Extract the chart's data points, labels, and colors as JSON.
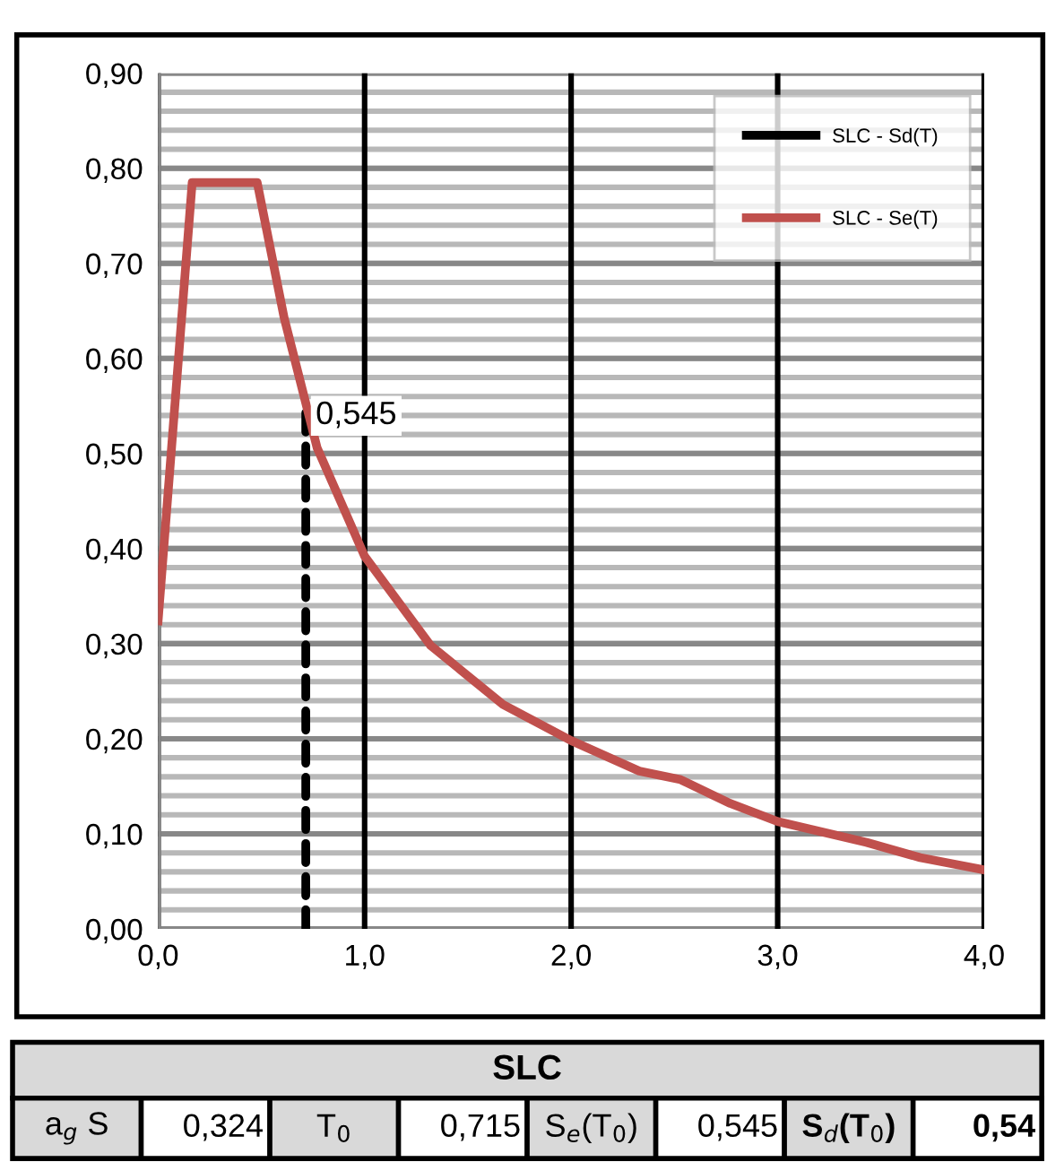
{
  "chart_data": {
    "type": "line",
    "series": [
      {
        "name": "SLC - Sd(T)",
        "color": "#000000",
        "line_style": "dashed",
        "x": [
          0.715,
          0.715
        ],
        "values": [
          0,
          0.545
        ]
      },
      {
        "name": "SLC - Se(T)",
        "color": "#c0504d",
        "line_style": "solid",
        "x": [
          0,
          0.165,
          0.48,
          0.61,
          0.77,
          0.885,
          1.0,
          1.32,
          1.67,
          2.0,
          2.33,
          2.53,
          2.77,
          3.0,
          3.43,
          3.69,
          3.86,
          4.0
        ],
        "values": [
          0.324,
          0.785,
          0.785,
          0.643,
          0.506,
          0.449,
          0.392,
          0.298,
          0.236,
          0.198,
          0.166,
          0.157,
          0.132,
          0.113,
          0.091,
          0.075,
          0.068,
          0.062
        ]
      }
    ],
    "xlim": [
      0,
      4
    ],
    "xticks": [
      {
        "value": 0,
        "label": "0,0"
      },
      {
        "value": 1,
        "label": "1,0"
      },
      {
        "value": 2,
        "label": "2,0"
      },
      {
        "value": 3,
        "label": "3,0"
      },
      {
        "value": 4,
        "label": "4,0"
      }
    ],
    "ylim": [
      0,
      0.9
    ],
    "yticks": [
      {
        "value": 0,
        "label": "0,00"
      },
      {
        "value": 0.1,
        "label": "0,10"
      },
      {
        "value": 0.2,
        "label": "0,20"
      },
      {
        "value": 0.3,
        "label": "0,30"
      },
      {
        "value": 0.4,
        "label": "0,40"
      },
      {
        "value": 0.5,
        "label": "0,50"
      },
      {
        "value": 0.6,
        "label": "0,60"
      },
      {
        "value": 0.7,
        "label": "0,70"
      },
      {
        "value": 0.8,
        "label": "0,80"
      },
      {
        "value": 0.9,
        "label": "0,90"
      }
    ],
    "grid": true,
    "legend": "top right",
    "marker": "none",
    "annotations": [
      {
        "text": "0,545",
        "x": 0.715,
        "y": 0.545
      },
      "SLC",
      "a$_{g}$ S",
      "0,324",
      "T$_{0}$",
      "0,715",
      "S$_{e}$(T$_{0}$)",
      "0,545",
      "S$_{d}$(T$_{0}$)",
      "0,54"
    ]
  }
}
